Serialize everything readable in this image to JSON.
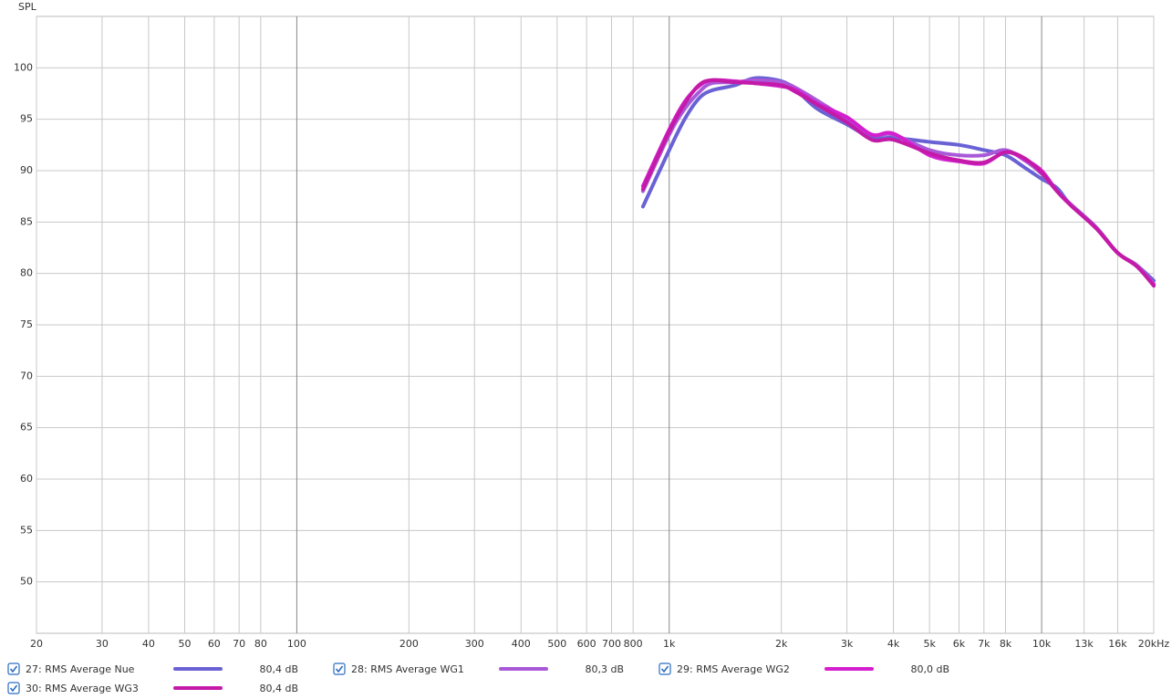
{
  "chart_data": {
    "type": "line",
    "y_label": "SPL",
    "log_x": true,
    "grid": true,
    "x": [
      850,
      1000,
      1100,
      1200,
      1300,
      1500,
      1700,
      2000,
      2200,
      2500,
      3000,
      3500,
      4000,
      5000,
      6000,
      7000,
      8000,
      9000,
      10000,
      11000,
      12000,
      14000,
      16000,
      18000,
      20000
    ],
    "xlim": [
      20,
      20000
    ],
    "xticks": [
      20,
      30,
      40,
      50,
      60,
      70,
      80,
      100,
      200,
      300,
      400,
      500,
      600,
      700,
      800,
      {
        "value": 1000,
        "label": "1k"
      },
      {
        "value": 2000,
        "label": "2k"
      },
      {
        "value": 3000,
        "label": "3k"
      },
      {
        "value": 4000,
        "label": "4k"
      },
      {
        "value": 5000,
        "label": "5k"
      },
      {
        "value": 6000,
        "label": "6k"
      },
      {
        "value": 7000,
        "label": "7k"
      },
      {
        "value": 8000,
        "label": "8k"
      },
      {
        "value": 10000,
        "label": "10k"
      },
      {
        "value": 13000,
        "label": "13k"
      },
      {
        "value": 16000,
        "label": "16k"
      },
      {
        "value": 20000,
        "label": "20kHz"
      }
    ],
    "ylim": [
      45,
      105
    ],
    "yticks": [
      50,
      55,
      60,
      65,
      70,
      75,
      80,
      85,
      90,
      95,
      100
    ],
    "series": [
      {
        "name": "27: RMS Average Nue",
        "color": "#6a62d4",
        "level": 80.4,
        "level_label": "80,4 dB",
        "values": [
          86.5,
          92,
          95,
          97,
          97.8,
          98.3,
          99,
          98.7,
          97.8,
          96,
          94.5,
          93.2,
          93.2,
          92.8,
          92.5,
          92,
          91.5,
          90.3,
          89.2,
          88.3,
          86.6,
          84.5,
          82,
          80.8,
          79.3
        ]
      },
      {
        "name": "28: RMS Average WG1",
        "color": "#a958d8",
        "level": 80.3,
        "level_label": "80,3 dB",
        "values": [
          88,
          93.5,
          96,
          97.6,
          98.5,
          98.6,
          98.8,
          98.6,
          98,
          96.8,
          95,
          93.5,
          93.5,
          92,
          91.5,
          91.5,
          92,
          91,
          89.7,
          88,
          86.7,
          84.5,
          82,
          80.8,
          79
        ]
      },
      {
        "name": "29: RMS Average WG2",
        "color": "#d41fcf",
        "level": 80.0,
        "level_label": "80,0 dB",
        "values": [
          88.5,
          94,
          96.7,
          98.2,
          98.8,
          98.7,
          98.5,
          98.2,
          97.8,
          96.5,
          95.2,
          93.5,
          93.6,
          91.5,
          90.9,
          90.7,
          91.8,
          91.1,
          90,
          88,
          86.6,
          84.4,
          82,
          80.7,
          78.9
        ]
      },
      {
        "name": "30: RMS Average WG3",
        "color": "#c41aa8",
        "level": 80.4,
        "level_label": "80,4 dB",
        "values": [
          88.2,
          93.8,
          96.5,
          98.3,
          98.8,
          98.6,
          98.5,
          98.3,
          97.6,
          96.4,
          94.7,
          93,
          93,
          91.7,
          91,
          90.8,
          91.8,
          91.2,
          89.8,
          88,
          86.6,
          84.4,
          82,
          80.7,
          78.8
        ]
      }
    ]
  }
}
